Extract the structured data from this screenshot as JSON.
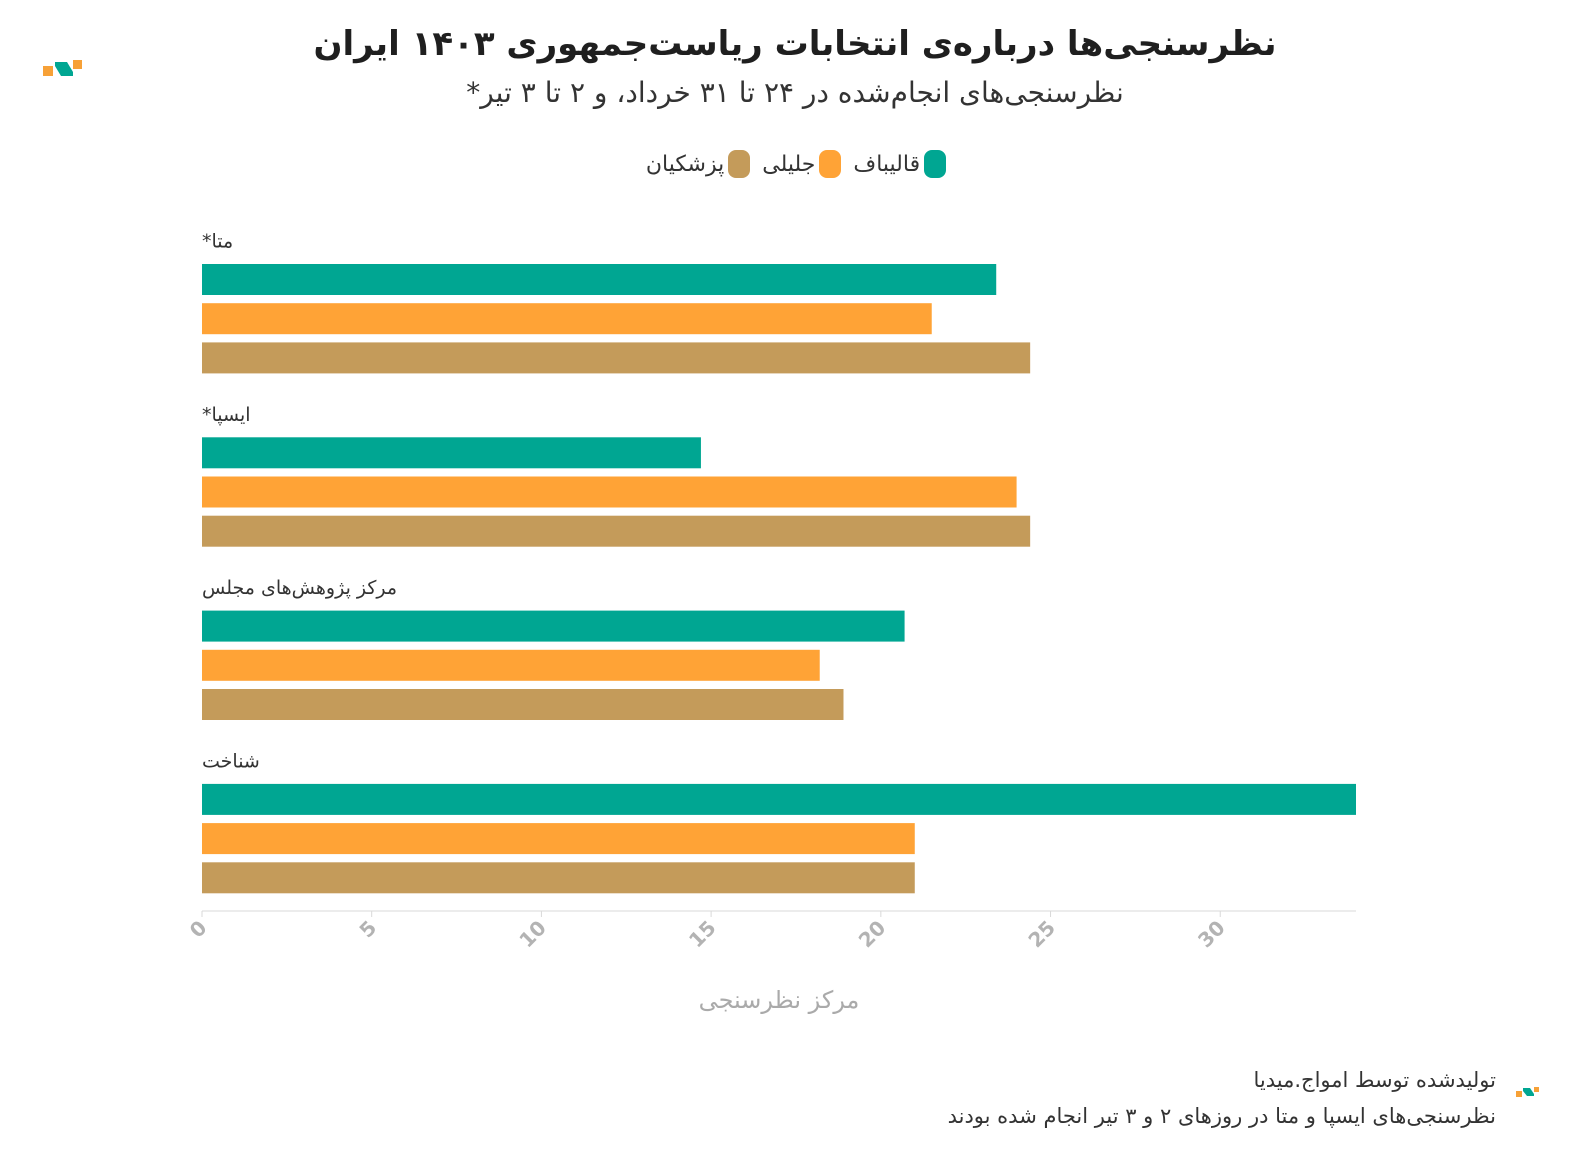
{
  "title": "نظرسنجی‌ها درباره‌ی انتخابات ریاست‌جمهوری ۱۴۰۳ ایران",
  "subtitle": "نظرسنجی‌های انجام‌شده در ۲۴ تا ۳۱ خرداد، و ۲ تا ۳ تیر*",
  "colors": {
    "ghalibaf": "#00A692",
    "jalili": "#FFA336",
    "pezeshkian": "#C49B5A",
    "brand_green": "#00A692",
    "brand_orange": "#F7A137"
  },
  "footer": {
    "credit": "تولیدشده توسط امواج.میدیا",
    "note": "نظرسنجی‌های ایسپا و متا در روزهای ۲ و ۳ تیر انجام شده بودند"
  },
  "chart_data": {
    "type": "bar",
    "orientation": "horizontal",
    "title": "نظرسنجی‌ها درباره‌ی انتخابات ریاست‌جمهوری ۱۴۰۳ ایران",
    "subtitle": "نظرسنجی‌های انجام‌شده در ۲۴ تا ۳۱ خرداد، و ۲ تا ۳ تیر*",
    "categories": [
      "*متا",
      "*ایسپا",
      "مرکز پژوهش‌های مجلس",
      "شناخت"
    ],
    "series": [
      {
        "name": "قالیباف",
        "color": "#00A692",
        "values": [
          23.4,
          14.7,
          20.7,
          34.0
        ]
      },
      {
        "name": "جلیلی",
        "color": "#FFA336",
        "values": [
          21.5,
          24.0,
          18.2,
          21.0
        ]
      },
      {
        "name": "پزشکیان",
        "color": "#C49B5A",
        "values": [
          24.4,
          24.4,
          18.9,
          21.0
        ]
      }
    ],
    "xlabel": "مرکز نظرسنجی",
    "xlim": [
      0,
      34
    ],
    "xticks": [
      0,
      5,
      10,
      15,
      20,
      25,
      30
    ],
    "legend_position": "top-center",
    "grid": false
  }
}
